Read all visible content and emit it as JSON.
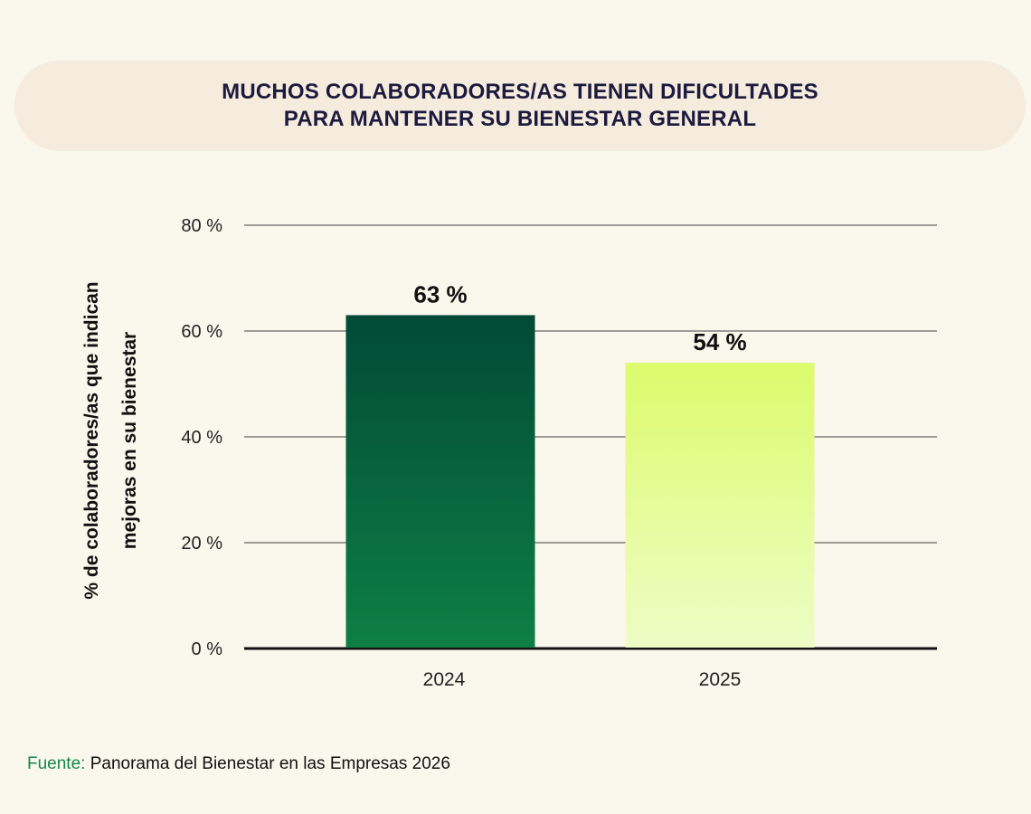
{
  "chart_data": {
    "type": "bar",
    "title": "MUCHOS COLABORADORES/AS TIENEN DIFICULTADES PARA MANTENER SU BIENESTAR GENERAL",
    "title_lines": [
      "MUCHOS COLABORADORES/AS TIENEN DIFICULTADES",
      "PARA MANTENER SU BIENESTAR GENERAL"
    ],
    "categories": [
      "2024",
      "2025"
    ],
    "values": [
      63,
      54
    ],
    "data_labels": [
      "63 %",
      "54 %"
    ],
    "xlabel": "",
    "ylabel_lines": [
      "% de colaboradores/as que indican",
      "mejoras en su bienestar"
    ],
    "ylim": [
      0,
      80
    ],
    "yticks": [
      0,
      20,
      40,
      60,
      80
    ],
    "ytick_labels": [
      "0 %",
      "20 %",
      "40 %",
      "60 %",
      "80 %"
    ],
    "grid": true,
    "bar_colors": [
      [
        "#024a36",
        "#0d7f45"
      ],
      [
        "#dcfb6c",
        "#eefcc6"
      ]
    ]
  },
  "footer": {
    "source_label": "Fuente:",
    "source_text": "Panorama del Bienestar en las Empresas 2026"
  },
  "colors": {
    "background": "#faf7ec",
    "banner": "#f6ecdd",
    "title": "#1c1a3f",
    "source": "#14874a"
  }
}
